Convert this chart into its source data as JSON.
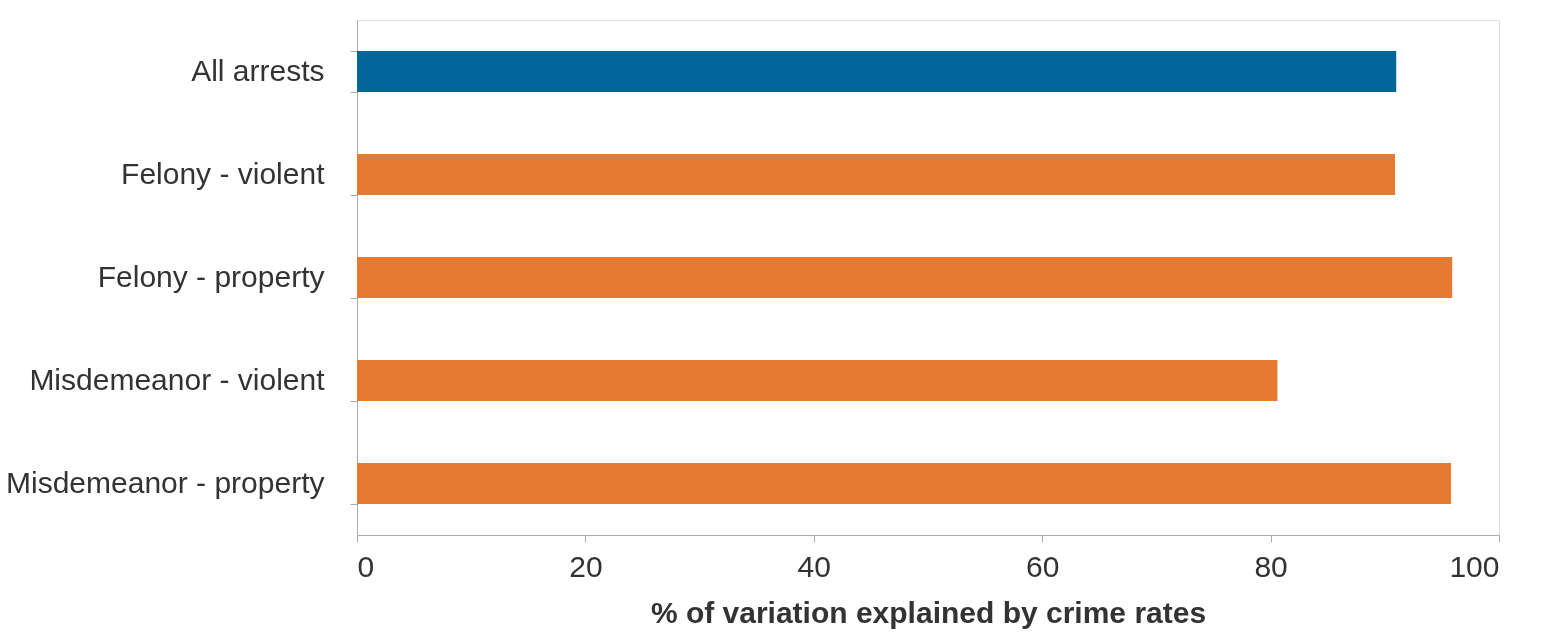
{
  "chart_data": {
    "type": "bar",
    "orientation": "horizontal",
    "xlabel": "% of variation explained by crime rates",
    "categories": [
      "All arrests",
      "Felony - violent",
      "Felony - property",
      "Misdemeanor - violent",
      "Misdemeanor - property"
    ],
    "values": [
      91,
      90.9,
      95.9,
      80.6,
      95.8
    ],
    "colors": [
      "#006699",
      "#e57a32",
      "#e57a32",
      "#e57a32",
      "#e57a32"
    ],
    "xlim": [
      0,
      100
    ],
    "xticks": [
      0,
      20,
      40,
      60,
      80,
      100
    ],
    "grid": false
  }
}
